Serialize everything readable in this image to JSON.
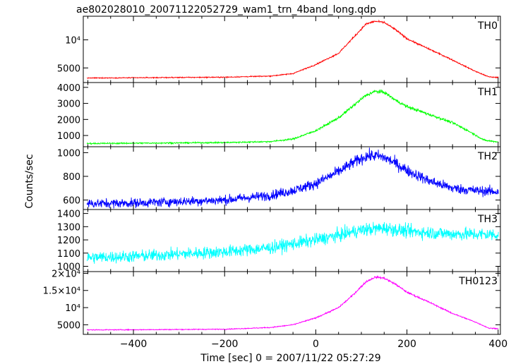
{
  "chart_data": {
    "type": "line",
    "title": "ae802028010_20071122052729_wam1_trn_4band_long.qdp",
    "xlabel": "Time [sec] 0 = 2007/11/22 05:27:29",
    "ylabel": "Counts/sec",
    "xlim": [
      -510,
      405
    ],
    "x_ticks": [
      -400,
      -200,
      0,
      200,
      400
    ],
    "x_tick_labels": [
      "−400",
      "−200",
      "0",
      "200",
      "400"
    ],
    "panels": [
      {
        "name": "TH0",
        "color": "#ff0000",
        "ylim": [
          2400,
          14200
        ],
        "y_ticks": [
          5000,
          10000
        ],
        "y_tick_labels": [
          "5000",
          "10⁴"
        ],
        "noise": 80,
        "profile": {
          "x": [
            -510,
            -400,
            -200,
            -100,
            -50,
            0,
            50,
            80,
            110,
            130,
            150,
            175,
            200,
            250,
            290,
            320,
            350,
            380,
            400
          ],
          "y": [
            3200,
            3250,
            3350,
            3550,
            4000,
            5600,
            7600,
            10200,
            12800,
            13300,
            13100,
            11800,
            10200,
            8300,
            6800,
            5600,
            4400,
            3400,
            3300
          ]
        }
      },
      {
        "name": "TH1",
        "color": "#00ff00",
        "ylim": [
          300,
          4300
        ],
        "y_ticks": [
          1000,
          2000,
          3000,
          4000
        ],
        "y_tick_labels": [
          "1000",
          "2000",
          "3000",
          "4000"
        ],
        "noise": 40,
        "profile": {
          "x": [
            -510,
            -400,
            -200,
            -100,
            -50,
            0,
            50,
            80,
            110,
            130,
            150,
            175,
            200,
            250,
            300,
            340,
            370,
            400
          ],
          "y": [
            500,
            520,
            560,
            620,
            780,
            1300,
            2100,
            2800,
            3500,
            3750,
            3700,
            3200,
            2800,
            2300,
            1800,
            1200,
            700,
            600
          ]
        }
      },
      {
        "name": "TH2",
        "color": "#0000ff",
        "ylim": [
          520,
          1050
        ],
        "y_ticks": [
          600,
          800,
          1000
        ],
        "y_tick_labels": [
          "600",
          "800",
          "1000"
        ],
        "noise": 38,
        "profile": {
          "x": [
            -510,
            -400,
            -200,
            -100,
            -50,
            0,
            50,
            80,
            110,
            130,
            150,
            175,
            200,
            250,
            300,
            350,
            400
          ],
          "y": [
            570,
            575,
            600,
            640,
            680,
            740,
            840,
            910,
            970,
            975,
            960,
            910,
            850,
            760,
            700,
            680,
            670
          ]
        }
      },
      {
        "name": "TH3",
        "color": "#00ffff",
        "ylim": [
          960,
          1430
        ],
        "y_ticks": [
          1000,
          1100,
          1200,
          1300,
          1400
        ],
        "y_tick_labels": [
          "1000",
          "1100",
          "1200",
          "1300",
          "1400"
        ],
        "noise": 45,
        "profile": {
          "x": [
            -510,
            -400,
            -200,
            -100,
            0,
            50,
            100,
            150,
            200,
            300,
            400
          ],
          "y": [
            1065,
            1075,
            1110,
            1140,
            1200,
            1235,
            1275,
            1290,
            1265,
            1245,
            1240
          ]
        }
      },
      {
        "name": "TH0123",
        "color": "#ff00ff",
        "ylim": [
          2200,
          20500
        ],
        "y_ticks": [
          5000,
          10000,
          15000,
          20000
        ],
        "y_tick_labels": [
          "5000",
          "10⁴",
          "1.5×10⁴",
          "2×10⁴"
        ],
        "noise": 120,
        "profile": {
          "x": [
            -510,
            -400,
            -200,
            -100,
            -50,
            0,
            50,
            80,
            110,
            130,
            150,
            175,
            200,
            250,
            300,
            350,
            380,
            400
          ],
          "y": [
            3500,
            3550,
            3700,
            4200,
            5000,
            7000,
            10000,
            13500,
            17500,
            18900,
            18600,
            16800,
            14500,
            11500,
            8300,
            5800,
            4000,
            3900
          ]
        }
      }
    ]
  }
}
